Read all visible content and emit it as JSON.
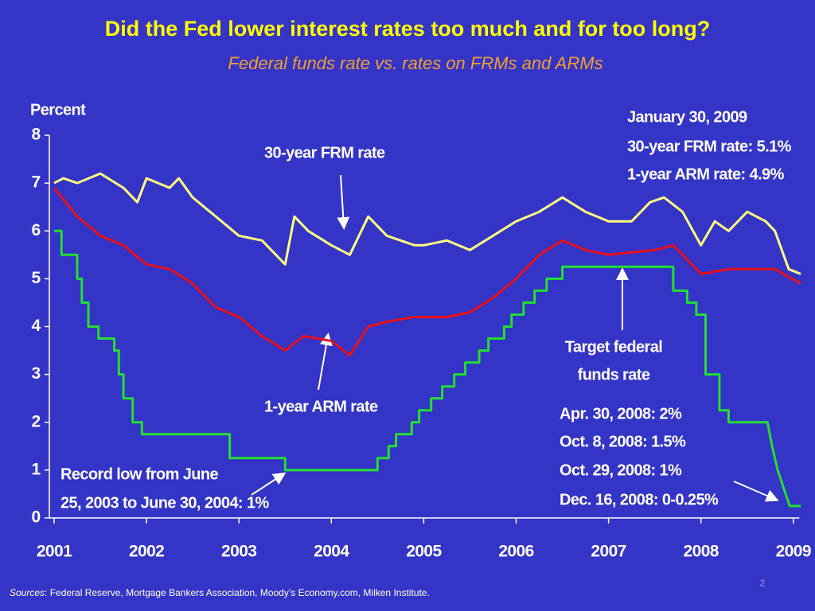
{
  "chart_data": {
    "type": "line",
    "title": "Did the Fed lower interest rates too much and for too long?",
    "subtitle": "Federal funds rate vs. rates on FRMs and ARMs",
    "y_label": "Percent",
    "xlim": [
      2001,
      2009.1
    ],
    "xticks": [
      2001,
      2002,
      2003,
      2004,
      2005,
      2006,
      2007,
      2008,
      2009
    ],
    "ylim": [
      0,
      8
    ],
    "yticks": [
      0,
      1,
      2,
      3,
      4,
      5,
      6,
      7,
      8
    ],
    "series": [
      {
        "name": "30-year FRM rate",
        "color": "#ffff80",
        "x": [
          2001.0,
          2001.1,
          2001.25,
          2001.5,
          2001.75,
          2001.9,
          2002.0,
          2002.25,
          2002.35,
          2002.5,
          2002.75,
          2003.0,
          2003.25,
          2003.5,
          2003.6,
          2003.75,
          2004.0,
          2004.2,
          2004.4,
          2004.6,
          2004.9,
          2005.0,
          2005.25,
          2005.5,
          2005.75,
          2006.0,
          2006.25,
          2006.5,
          2006.75,
          2007.0,
          2007.25,
          2007.45,
          2007.6,
          2007.8,
          2008.0,
          2008.15,
          2008.3,
          2008.5,
          2008.7,
          2008.8,
          2008.95,
          2009.08
        ],
        "values": [
          7.0,
          7.1,
          7.0,
          7.2,
          6.9,
          6.6,
          7.1,
          6.9,
          7.1,
          6.7,
          6.3,
          5.9,
          5.8,
          5.3,
          6.3,
          6.0,
          5.7,
          5.5,
          6.3,
          5.9,
          5.7,
          5.7,
          5.8,
          5.6,
          5.9,
          6.2,
          6.4,
          6.7,
          6.4,
          6.2,
          6.2,
          6.6,
          6.7,
          6.4,
          5.7,
          6.2,
          6.0,
          6.4,
          6.2,
          6.0,
          5.2,
          5.1
        ]
      },
      {
        "name": "1-year ARM rate",
        "color": "#e8101a",
        "x": [
          2001.0,
          2001.25,
          2001.5,
          2001.75,
          2002.0,
          2002.25,
          2002.5,
          2002.75,
          2003.0,
          2003.25,
          2003.5,
          2003.7,
          2004.0,
          2004.2,
          2004.4,
          2004.6,
          2004.9,
          2005.25,
          2005.5,
          2005.75,
          2006.0,
          2006.25,
          2006.5,
          2006.75,
          2007.0,
          2007.5,
          2007.7,
          2008.0,
          2008.3,
          2008.6,
          2008.8,
          2009.08
        ],
        "values": [
          6.9,
          6.3,
          5.9,
          5.7,
          5.3,
          5.2,
          4.9,
          4.4,
          4.2,
          3.8,
          3.5,
          3.8,
          3.7,
          3.4,
          4.0,
          4.1,
          4.2,
          4.2,
          4.3,
          4.6,
          5.0,
          5.5,
          5.8,
          5.6,
          5.5,
          5.6,
          5.7,
          5.1,
          5.2,
          5.2,
          5.2,
          4.9
        ]
      },
      {
        "name": "Target federal funds rate",
        "color": "#22e030",
        "x": [
          2001.0,
          2001.08,
          2001.08,
          2001.25,
          2001.25,
          2001.3,
          2001.3,
          2001.37,
          2001.37,
          2001.48,
          2001.48,
          2001.65,
          2001.65,
          2001.7,
          2001.7,
          2001.75,
          2001.75,
          2001.85,
          2001.85,
          2001.95,
          2001.95,
          2002.9,
          2002.9,
          2003.5,
          2003.5,
          2004.5,
          2004.5,
          2004.62,
          2004.62,
          2004.7,
          2004.7,
          2004.87,
          2004.87,
          2004.95,
          2004.95,
          2005.08,
          2005.08,
          2005.2,
          2005.2,
          2005.33,
          2005.33,
          2005.45,
          2005.45,
          2005.6,
          2005.6,
          2005.7,
          2005.7,
          2005.87,
          2005.87,
          2005.95,
          2005.95,
          2006.08,
          2006.08,
          2006.2,
          2006.2,
          2006.33,
          2006.33,
          2006.5,
          2006.5,
          2007.7,
          2007.7,
          2007.85,
          2007.85,
          2007.95,
          2007.95,
          2008.05,
          2008.05,
          2008.2,
          2008.2,
          2008.3,
          2008.3,
          2008.72,
          2008.72,
          2008.77,
          2008.77,
          2008.83,
          2008.83,
          2008.96,
          2008.96,
          2009.08
        ],
        "values": [
          6.0,
          6.0,
          5.5,
          5.5,
          5.0,
          5.0,
          4.5,
          4.5,
          4.0,
          4.0,
          3.75,
          3.75,
          3.5,
          3.5,
          3.0,
          3.0,
          2.5,
          2.5,
          2.0,
          2.0,
          1.75,
          1.75,
          1.25,
          1.25,
          1.0,
          1.0,
          1.25,
          1.25,
          1.5,
          1.5,
          1.75,
          1.75,
          2.0,
          2.0,
          2.25,
          2.25,
          2.5,
          2.5,
          2.75,
          2.75,
          3.0,
          3.0,
          3.25,
          3.25,
          3.5,
          3.5,
          3.75,
          3.75,
          4.0,
          4.0,
          4.25,
          4.25,
          4.5,
          4.5,
          4.75,
          4.75,
          5.0,
          5.0,
          5.25,
          5.25,
          4.75,
          4.75,
          4.5,
          4.5,
          4.25,
          4.25,
          3.0,
          3.0,
          2.25,
          2.25,
          2.0,
          2.0,
          2.0,
          1.5,
          1.5,
          1.0,
          1.0,
          0.25,
          0.25,
          0.25
        ]
      }
    ],
    "annotations": {
      "frm_label": "30-year FRM rate",
      "arm_label": "1-year ARM rate",
      "fed_label": [
        "Target federal",
        "funds rate"
      ],
      "jan_box": [
        "January 30, 2009",
        "30-year FRM rate: 5.1%",
        "1-year ARM rate: 4.9%"
      ],
      "record_low": [
        "Record low from June",
        "25, 2003 to June 30, 2004: 1%"
      ],
      "cuts": [
        "Apr. 30, 2008: 2%",
        "Oct. 8, 2008: 1.5%",
        "Oct. 29, 2008: 1%",
        "Dec. 16,  2008: 0-0.25%"
      ]
    },
    "footnote": {
      "label": "Sources",
      "text": ": Federal Reserve, Mortgage Bankers Association, Moody’s Economy.com, Milken Institute."
    },
    "page_number": "2"
  }
}
